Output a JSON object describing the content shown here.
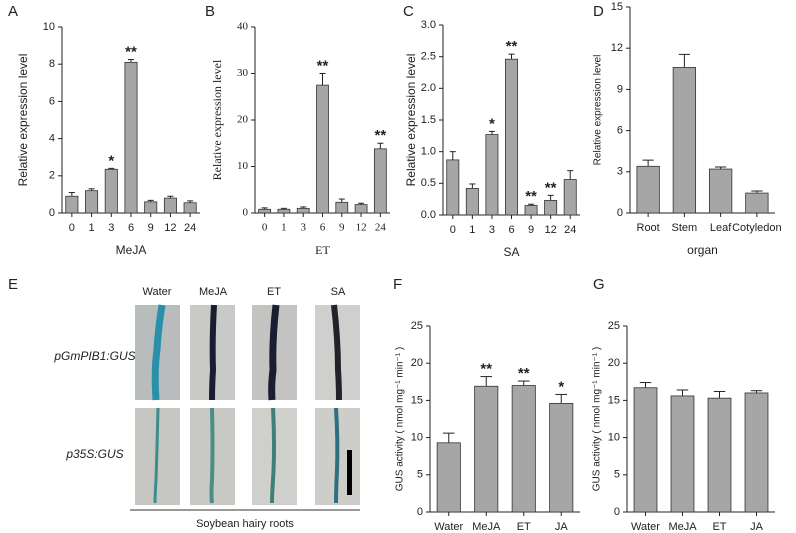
{
  "chart_data": [
    {
      "type": "bar",
      "panel": "A",
      "xlabel": "MeJA",
      "ylabel": "Relative expression level",
      "categories": [
        "0",
        "1",
        "3",
        "6",
        "9",
        "12",
        "24"
      ],
      "values": [
        0.9,
        1.2,
        2.35,
        8.1,
        0.6,
        0.8,
        0.55
      ],
      "errors": [
        0.2,
        0.1,
        0.05,
        0.15,
        0.08,
        0.1,
        0.1
      ],
      "annotations": [
        null,
        null,
        "*",
        "**",
        null,
        null,
        null
      ],
      "color": "#a6a6a6",
      "ylim": [
        0,
        10
      ],
      "yticks": [
        0,
        2,
        4,
        6,
        8,
        10
      ]
    },
    {
      "type": "bar",
      "panel": "B",
      "xlabel": "ET",
      "ylabel": "Relative expression level",
      "categories": [
        "0",
        "1",
        "3",
        "6",
        "9",
        "12",
        "24"
      ],
      "values": [
        0.8,
        0.8,
        1.0,
        27.5,
        2.3,
        1.8,
        13.8
      ],
      "errors": [
        0.3,
        0.2,
        0.3,
        2.5,
        0.7,
        0.3,
        1.2
      ],
      "annotations": [
        null,
        null,
        null,
        "**",
        null,
        null,
        "**"
      ],
      "color": "#a6a6a6",
      "ylim": [
        0,
        40
      ],
      "yticks": [
        0,
        10,
        20,
        30,
        40
      ]
    },
    {
      "type": "bar",
      "panel": "C",
      "xlabel": "SA",
      "ylabel": "Relative expression level",
      "categories": [
        "0",
        "1",
        "3",
        "6",
        "9",
        "12",
        "24"
      ],
      "values": [
        0.87,
        0.42,
        1.27,
        2.46,
        0.15,
        0.23,
        0.56
      ],
      "errors": [
        0.13,
        0.07,
        0.05,
        0.08,
        0.02,
        0.08,
        0.14
      ],
      "annotations": [
        null,
        null,
        "*",
        "**",
        "**",
        "**",
        null
      ],
      "color": "#a6a6a6",
      "ylim": [
        0,
        3
      ],
      "yticks": [
        {
          "value": 0,
          "label": "0.0"
        },
        0.5,
        {
          "value": 1,
          "label": "1.0"
        },
        1.5,
        {
          "value": 2,
          "label": "2.0"
        },
        2.5,
        {
          "value": 3,
          "label": "3.0"
        }
      ]
    },
    {
      "type": "bar",
      "panel": "D",
      "xlabel": "organ",
      "ylabel": "Relative expression level",
      "categories": [
        "Root",
        "Stem",
        "Leaf",
        "Cotyledon"
      ],
      "values": [
        3.4,
        10.6,
        3.2,
        1.45
      ],
      "errors": [
        0.45,
        0.95,
        0.15,
        0.15
      ],
      "annotations": [
        null,
        null,
        null,
        null
      ],
      "color": "#a6a6a6",
      "ylim": [
        0,
        15
      ],
      "yticks": [
        0,
        3,
        6,
        9,
        12,
        15
      ]
    },
    {
      "type": "bar",
      "panel": "F",
      "ylabel": "GUS activity ( nmol mg⁻¹ min⁻¹ )",
      "categories": [
        "Water",
        "MeJA",
        "ET",
        "JA"
      ],
      "values": [
        9.3,
        16.9,
        17.0,
        14.6
      ],
      "errors": [
        1.3,
        1.3,
        0.6,
        1.2
      ],
      "annotations": [
        null,
        "**",
        "**",
        "*"
      ],
      "color": "#a6a6a6",
      "ylim": [
        0,
        25
      ],
      "yticks": [
        0,
        5,
        10,
        15,
        20,
        25
      ]
    },
    {
      "type": "bar",
      "panel": "G",
      "ylabel": "GUS activity ( nmol mg⁻¹ min⁻¹ )",
      "categories": [
        "Water",
        "MeJA",
        "ET",
        "JA"
      ],
      "values": [
        16.7,
        15.6,
        15.3,
        16.0
      ],
      "errors": [
        0.7,
        0.8,
        0.9,
        0.3
      ],
      "annotations": [
        null,
        null,
        null,
        null
      ],
      "color": "#a6a6a6",
      "ylim": [
        0,
        25
      ],
      "yticks": [
        0,
        5,
        10,
        15,
        20,
        25
      ]
    }
  ],
  "image_panel": {
    "panel": "E",
    "columns": [
      "Water",
      "MeJA",
      "ET",
      "SA"
    ],
    "rows": [
      "pGmPIB1:GUS",
      "p35S:GUS"
    ],
    "caption": "Soybean hairy roots"
  }
}
